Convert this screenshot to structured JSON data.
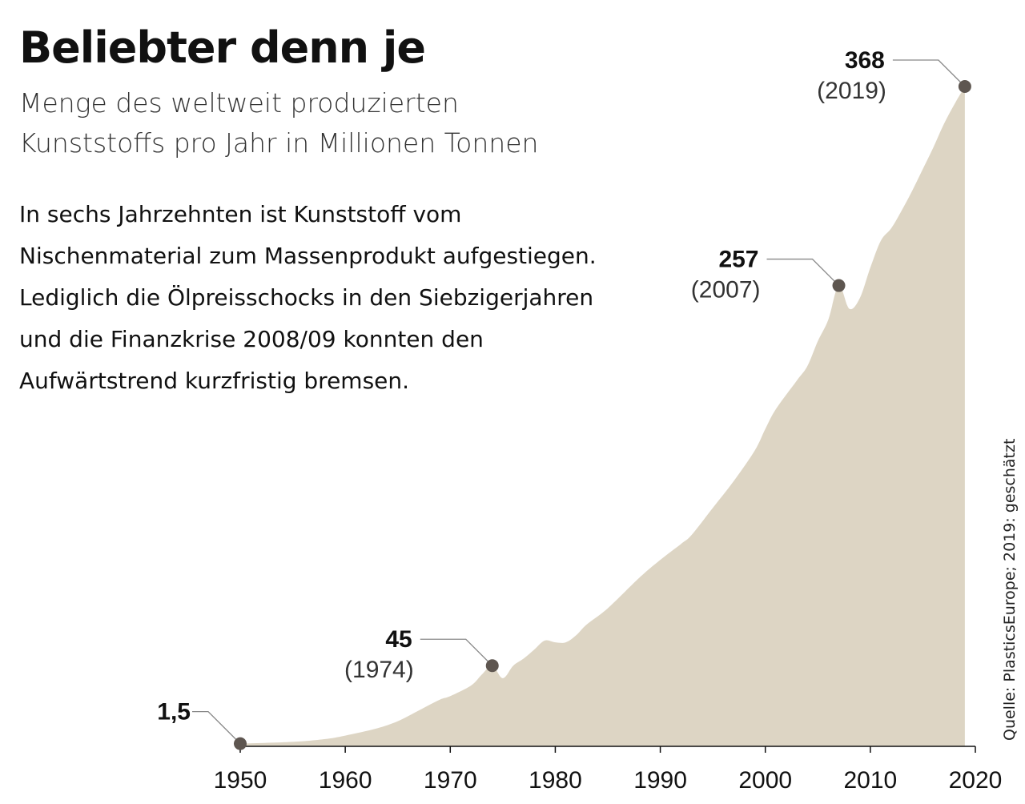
{
  "chart_data": {
    "type": "area",
    "title": "Beliebter denn je",
    "subtitle": "Menge des weltweit produzierten Kunststoffs pro Jahr in Millionen Tonnen",
    "description": "In sechs Jahrzehnten ist Kunststoff vom Nischenmaterial zum Massenprodukt aufgestiegen. Lediglich die Ölpreisschocks in den Siebzigerjahren und die Finanzkrise 2008/09 konnten den Aufwärtstrend kurzfristig bremsen.",
    "source": "Quelle: PlasticsEurope; 2019: geschätzt",
    "xlim": [
      1950,
      2020
    ],
    "ylim": [
      0,
      368
    ],
    "x_ticks": [
      "1950",
      "1960",
      "1970",
      "1980",
      "1990",
      "2000",
      "2010",
      "2020"
    ],
    "grid": false,
    "fill_color": "#ddd5c4",
    "marker_color": "#5e5650",
    "x": [
      1950,
      1955,
      1958,
      1960,
      1963,
      1965,
      1967,
      1969,
      1970,
      1972,
      1973,
      1974,
      1975,
      1976,
      1977,
      1978,
      1979,
      1980,
      1981,
      1982,
      1983,
      1985,
      1988,
      1990,
      1992,
      1993,
      1995,
      1997,
      1999,
      2000,
      2001,
      2003,
      2004,
      2005,
      2006,
      2007,
      2008,
      2009,
      2010,
      2011,
      2012,
      2013,
      2014,
      2015,
      2016,
      2017,
      2018,
      2019
    ],
    "values": [
      1.5,
      2.5,
      4,
      6,
      10,
      14,
      20,
      26,
      28,
      34,
      40,
      45,
      38,
      45,
      49,
      54,
      59,
      58,
      58,
      62,
      68,
      77,
      94,
      104,
      113,
      118,
      133,
      148,
      165,
      177,
      188,
      204,
      212,
      226,
      238,
      257,
      244,
      250,
      267,
      282,
      289,
      299,
      310,
      322,
      334,
      347,
      358,
      368
    ],
    "annotations": [
      {
        "year": 1950,
        "value_label": "1,5",
        "year_label": ""
      },
      {
        "year": 1974,
        "value_label": "45",
        "year_label": "(1974)"
      },
      {
        "year": 2007,
        "value_label": "257",
        "year_label": "(2007)"
      },
      {
        "year": 2019,
        "value_label": "368",
        "year_label": "(2019)"
      }
    ]
  }
}
